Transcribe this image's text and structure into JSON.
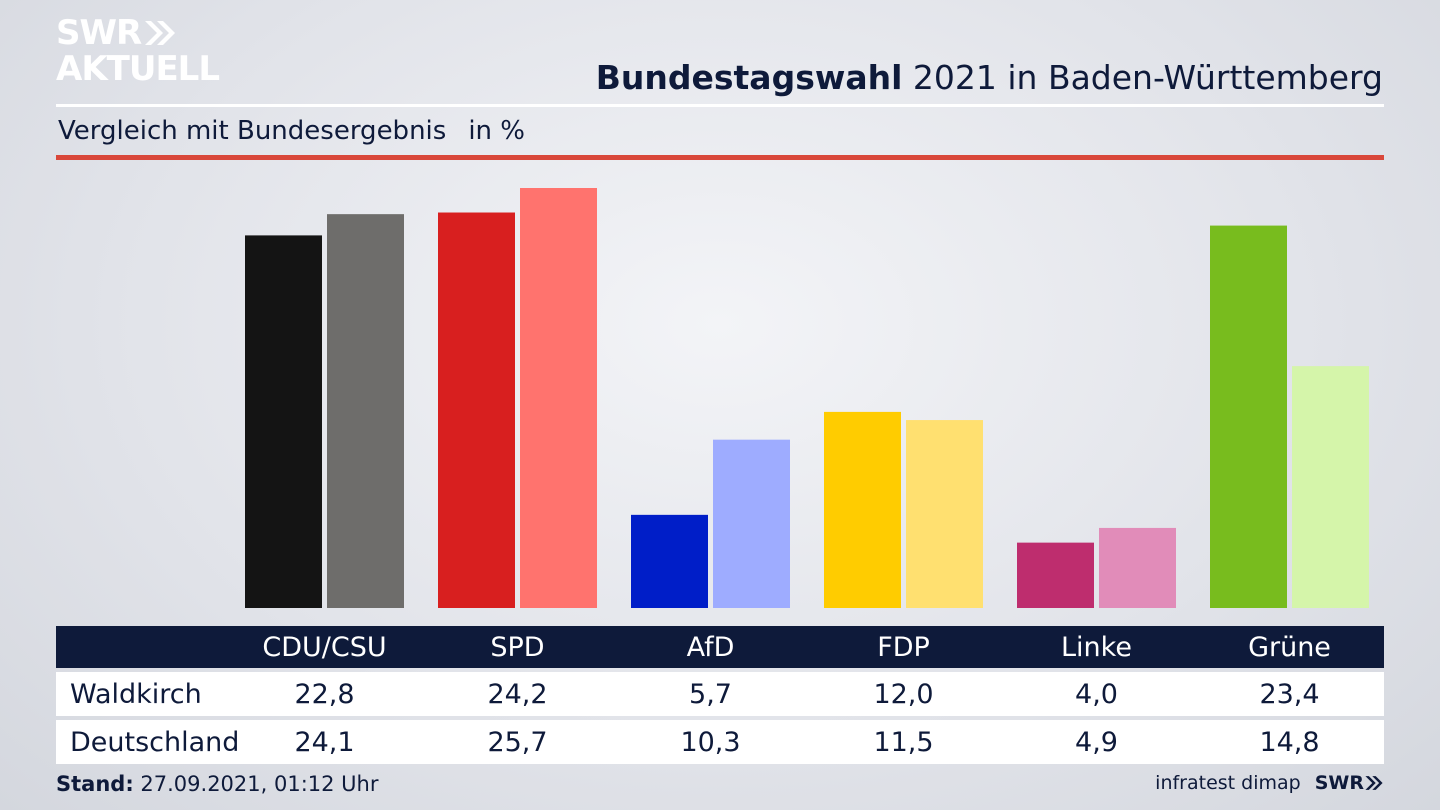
{
  "branding": {
    "logo_line1": "SWR",
    "logo_line2": "AKTUELL",
    "source": "infratest dimap",
    "footer_logo": "SWR"
  },
  "header": {
    "title_bold": "Bundestagswahl",
    "title_rest": " 2021 in Baden-Württemberg",
    "subtitle": "Vergleich mit Bundesergebnis",
    "unit": "in %"
  },
  "footer": {
    "stand_label": "Stand:",
    "stand_value": " 27.09.2021, 01:12 Uhr"
  },
  "chart_data": {
    "type": "bar",
    "categories": [
      "CDU/CSU",
      "SPD",
      "AfD",
      "FDP",
      "Linke",
      "Grüne"
    ],
    "series": [
      {
        "name": "Waldkirch",
        "values": [
          "22,8",
          "24,2",
          "5,7",
          "12,0",
          "4,0",
          "23,4"
        ],
        "colors": [
          "#141414",
          "#d81f1f",
          "#001ec8",
          "#ffcc00",
          "#be2d6e",
          "#78bc1e"
        ]
      },
      {
        "name": "Deutschland",
        "values": [
          "24,1",
          "25,7",
          "10,3",
          "11,5",
          "4,9",
          "14,8"
        ],
        "colors": [
          "#6e6d6b",
          "#ff736e",
          "#9eacff",
          "#ffe070",
          "#e18cb9",
          "#d5f5aa"
        ]
      }
    ],
    "ymax": 25.7
  }
}
